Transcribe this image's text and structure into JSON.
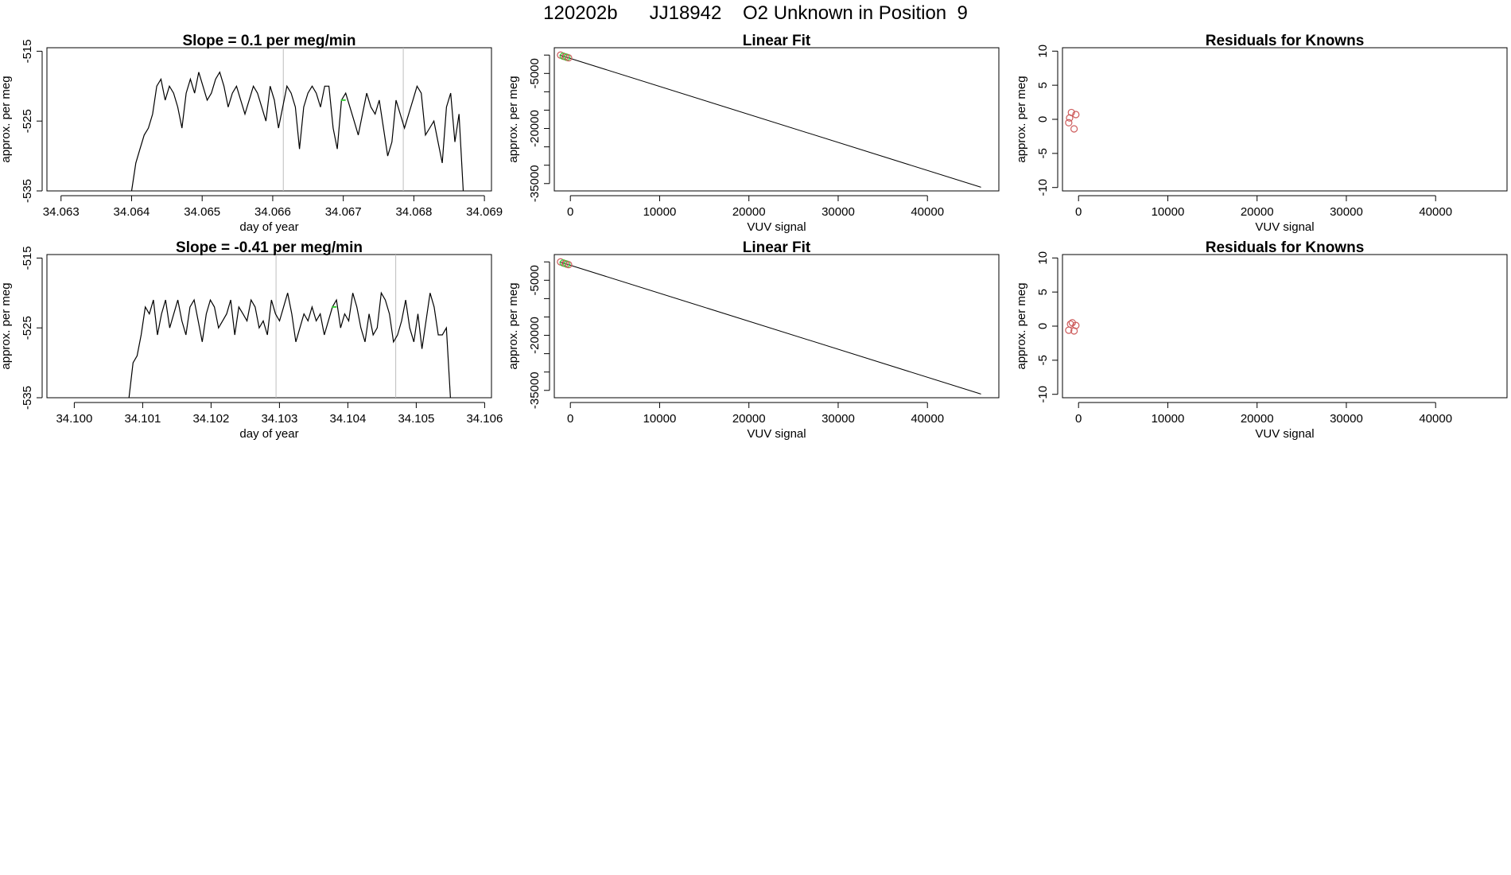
{
  "page": {
    "title": "120202b      JJ18942    O2 Unknown in Position  9"
  },
  "colors": {
    "line": "#000000",
    "marker_known": "#cd5c5c",
    "highlight": "#33cc33",
    "vline": "#bebebe"
  },
  "chart_data": [
    {
      "id": "row1-timeseries",
      "type": "line",
      "title": "Slope =  0.1  per meg/min",
      "xlabel": "day of year",
      "ylabel": "approx. per meg",
      "xlim": [
        34.0628,
        34.0691
      ],
      "ylim": [
        -535,
        -514.5
      ],
      "xticks": [
        34.063,
        34.064,
        34.065,
        34.066,
        34.067,
        34.068,
        34.069
      ],
      "xtick_labels": [
        "34.063",
        "34.064",
        "34.065",
        "34.066",
        "34.067",
        "34.068",
        "34.069"
      ],
      "yticks": [
        -535,
        -525,
        -515
      ],
      "ytick_labels": [
        "-535",
        "-525",
        "-515"
      ],
      "start": 34.064,
      "end": 34.0687,
      "vlines": [
        34.06615,
        34.06785
      ],
      "highlight_x": 34.067,
      "series": {
        "x_range": [
          34.064,
          34.0687
        ],
        "y": [
          -536,
          -531,
          -529,
          -527,
          -526,
          -524,
          -520,
          -519,
          -522,
          -520,
          -521,
          -523,
          -526,
          -521,
          -519,
          -521,
          -518,
          -520,
          -522,
          -521,
          -519,
          -518,
          -520,
          -523,
          -521,
          -520,
          -522,
          -524,
          -522,
          -520,
          -521,
          -523,
          -525,
          -520,
          -522,
          -526,
          -523,
          -520,
          -521,
          -523,
          -529,
          -523,
          -521,
          -520,
          -521,
          -523,
          -520,
          -520,
          -526,
          -529,
          -522,
          -521,
          -523,
          -525,
          -527,
          -524,
          -521,
          -523,
          -524,
          -522,
          -526,
          -530,
          -528,
          -522,
          -524,
          -526,
          -524,
          -522,
          -520,
          -521,
          -527,
          -526,
          -525,
          -528,
          -531,
          -523,
          -521,
          -528,
          -524,
          -536
        ]
      }
    },
    {
      "id": "row1-linearfit",
      "type": "line",
      "title": "Linear Fit",
      "xlabel": "VUV signal",
      "ylabel": "approx. per meg",
      "xlim": [
        -1800,
        48000
      ],
      "ylim": [
        -37000,
        2000
      ],
      "xticks": [
        0,
        10000,
        20000,
        30000,
        40000
      ],
      "xtick_labels": [
        "0",
        "10000",
        "20000",
        "30000",
        "40000"
      ],
      "yticks": [
        -35000,
        -20000,
        -5000
      ],
      "ytick_labels": [
        "-35000",
        "-20000",
        "-5000"
      ],
      "minor_yticks": [
        -30000,
        -25000,
        -15000,
        -10000,
        0
      ],
      "fit_line": {
        "x": [
          -1200,
          46000
        ],
        "y": [
          0,
          -36000
        ]
      },
      "points": {
        "x": [
          -1100,
          -800,
          -600,
          -400,
          -200
        ],
        "y": [
          0,
          -300,
          -450,
          -600,
          -750
        ]
      }
    },
    {
      "id": "row1-residuals",
      "type": "scatter",
      "title": "Residuals for Knowns",
      "xlabel": "VUV signal",
      "ylabel": "approx. per meg",
      "xlim": [
        -1800,
        48000
      ],
      "ylim": [
        -10.5,
        10.5
      ],
      "xticks": [
        0,
        10000,
        20000,
        30000,
        40000
      ],
      "xtick_labels": [
        "0",
        "10000",
        "20000",
        "30000",
        "40000"
      ],
      "yticks": [
        -10,
        -5,
        0,
        5,
        10
      ],
      "ytick_labels": [
        "-10",
        "-5",
        "0",
        "5",
        "10"
      ],
      "points": {
        "x": [
          -1100,
          -1000,
          -800,
          -500,
          -300
        ],
        "y": [
          -0.5,
          0.2,
          1.0,
          -1.4,
          0.7
        ]
      }
    },
    {
      "id": "row2-timeseries",
      "type": "line",
      "title": "Slope =  -0.41  per meg/min",
      "xlabel": "day of year",
      "ylabel": "approx. per meg",
      "xlim": [
        34.0996,
        34.1061
      ],
      "ylim": [
        -535,
        -514.5
      ],
      "xticks": [
        34.1,
        34.101,
        34.102,
        34.103,
        34.104,
        34.105,
        34.106
      ],
      "xtick_labels": [
        "34.100",
        "34.101",
        "34.102",
        "34.103",
        "34.104",
        "34.105",
        "34.106"
      ],
      "yticks": [
        -535,
        -525,
        -515
      ],
      "ytick_labels": [
        "-535",
        "-525",
        "-515"
      ],
      "start": 34.1008,
      "end": 34.1055,
      "vlines": [
        34.10295,
        34.1047
      ],
      "highlight_x": 34.1038,
      "series": {
        "x_range": [
          34.1008,
          34.1055
        ],
        "y": [
          -536,
          -530,
          -529,
          -526,
          -522,
          -523,
          -521,
          -526,
          -523,
          -521,
          -525,
          -523,
          -521,
          -524,
          -526,
          -522,
          -521,
          -524,
          -527,
          -523,
          -521,
          -522,
          -525,
          -524,
          -523,
          -521,
          -526,
          -522,
          -523,
          -524,
          -521,
          -522,
          -525,
          -524,
          -526,
          -521,
          -523,
          -524,
          -522,
          -520,
          -523,
          -527,
          -525,
          -523,
          -524,
          -522,
          -524,
          -523,
          -526,
          -524,
          -522,
          -521,
          -525,
          -523,
          -524,
          -520,
          -522,
          -525,
          -527,
          -523,
          -526,
          -525,
          -520,
          -521,
          -523,
          -527,
          -526,
          -524,
          -521,
          -525,
          -527,
          -523,
          -528,
          -524,
          -520,
          -522,
          -526,
          -526,
          -525,
          -536
        ]
      }
    },
    {
      "id": "row2-linearfit",
      "type": "line",
      "title": "Linear Fit",
      "xlabel": "VUV signal",
      "ylabel": "approx. per meg",
      "xlim": [
        -1800,
        48000
      ],
      "ylim": [
        -37000,
        2000
      ],
      "xticks": [
        0,
        10000,
        20000,
        30000,
        40000
      ],
      "xtick_labels": [
        "0",
        "10000",
        "20000",
        "30000",
        "40000"
      ],
      "yticks": [
        -35000,
        -20000,
        -5000
      ],
      "ytick_labels": [
        "-35000",
        "-20000",
        "-5000"
      ],
      "minor_yticks": [
        -30000,
        -25000,
        -15000,
        -10000,
        0
      ],
      "fit_line": {
        "x": [
          -1200,
          46000
        ],
        "y": [
          0,
          -36000
        ]
      },
      "points": {
        "x": [
          -1100,
          -800,
          -600,
          -400,
          -200
        ],
        "y": [
          0,
          -300,
          -450,
          -600,
          -750
        ]
      }
    },
    {
      "id": "row2-residuals",
      "type": "scatter",
      "title": "Residuals for Knowns",
      "xlabel": "VUV signal",
      "ylabel": "approx. per meg",
      "xlim": [
        -1800,
        48000
      ],
      "ylim": [
        -10.5,
        10.5
      ],
      "xticks": [
        0,
        10000,
        20000,
        30000,
        40000
      ],
      "xtick_labels": [
        "0",
        "10000",
        "20000",
        "30000",
        "40000"
      ],
      "yticks": [
        -10,
        -5,
        0,
        5,
        10
      ],
      "ytick_labels": [
        "-10",
        "-5",
        "0",
        "5",
        "10"
      ],
      "points": {
        "x": [
          -1100,
          -900,
          -700,
          -500,
          -300
        ],
        "y": [
          -0.6,
          0.3,
          0.5,
          -0.7,
          0.1
        ]
      }
    }
  ]
}
